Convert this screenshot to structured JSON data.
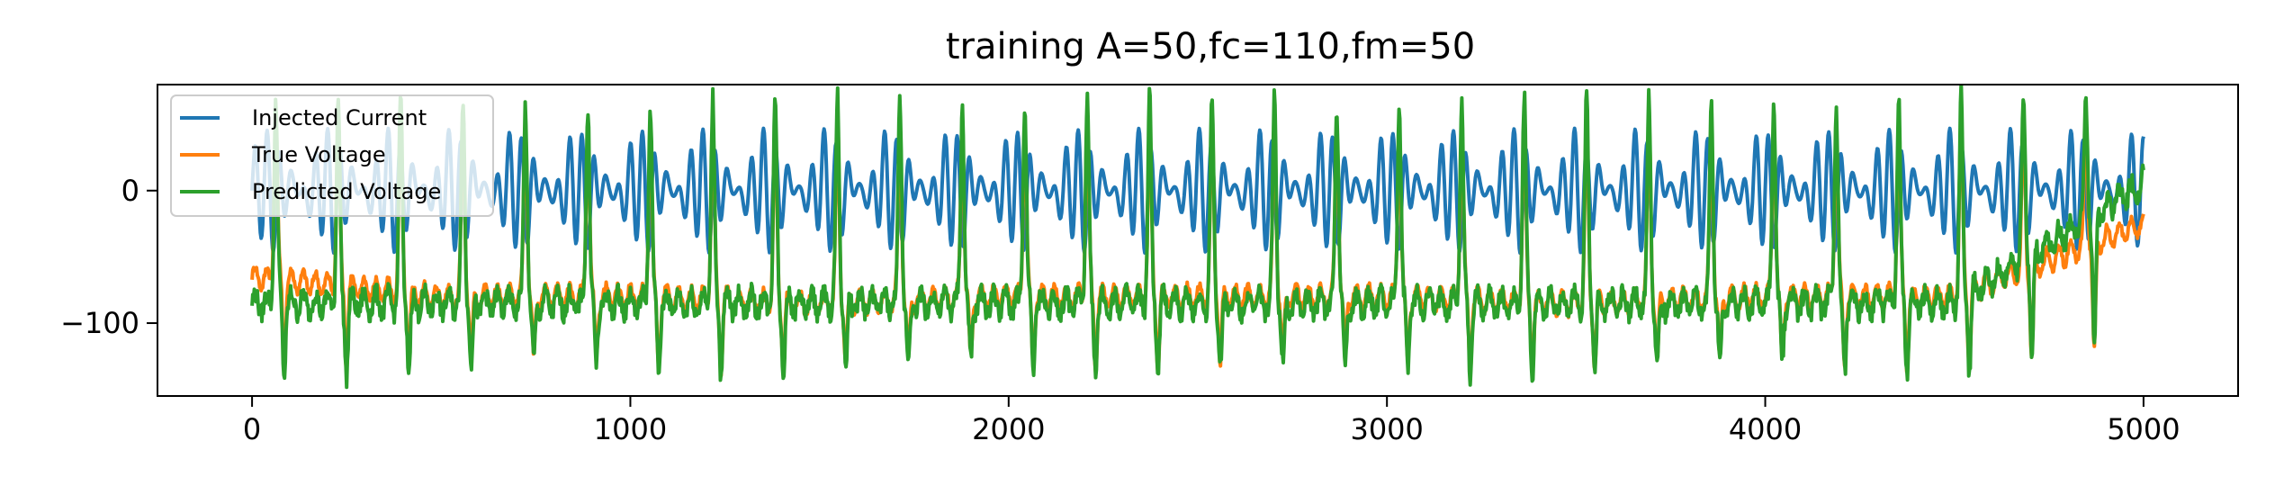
{
  "chart_data": {
    "type": "line",
    "title": "training A=50,fc=110,fm=50",
    "xlabel": "",
    "ylabel": "",
    "xlim": [
      -250,
      5250
    ],
    "ylim": [
      -155,
      80
    ],
    "xticks": [
      0,
      1000,
      2000,
      3000,
      4000,
      5000
    ],
    "xtick_labels": [
      "0",
      "1000",
      "2000",
      "3000",
      "4000",
      "5000"
    ],
    "yticks": [
      0,
      -100
    ],
    "ytick_labels": [
      "0",
      "−100"
    ],
    "grid": false,
    "legend_position": "upper-left",
    "series": [
      {
        "name": "Injected Current",
        "color": "#1f77b4",
        "x": [
          0,
          500,
          1000,
          1500,
          2000,
          2500,
          3000,
          3500,
          4000,
          4500,
          5000
        ],
        "values": [
          0,
          40,
          -45,
          45,
          -45,
          45,
          -45,
          45,
          -45,
          40,
          0
        ],
        "envelope_max": 50,
        "envelope_min": -50,
        "carrier_period": 32,
        "modulation_period": 165
      },
      {
        "name": "True Voltage",
        "color": "#ff7f0e",
        "x": [
          0,
          500,
          1000,
          1500,
          2000,
          2500,
          3000,
          3500,
          4000,
          4500,
          5000
        ],
        "values": [
          -65,
          -80,
          -80,
          -85,
          -80,
          -80,
          -80,
          -85,
          -80,
          -80,
          -25
        ],
        "spike_max": 50,
        "spike_min": -135,
        "spike_period": 165
      },
      {
        "name": "Predicted Voltage",
        "color": "#2ca02c",
        "x": [
          0,
          500,
          1000,
          1500,
          2000,
          2500,
          3000,
          3500,
          4000,
          4500,
          5000
        ],
        "values": [
          -85,
          -85,
          -85,
          -85,
          -85,
          -85,
          -85,
          -85,
          -85,
          -85,
          5
        ],
        "spike_max": 68,
        "spike_min": -140,
        "spike_period": 165
      }
    ]
  }
}
